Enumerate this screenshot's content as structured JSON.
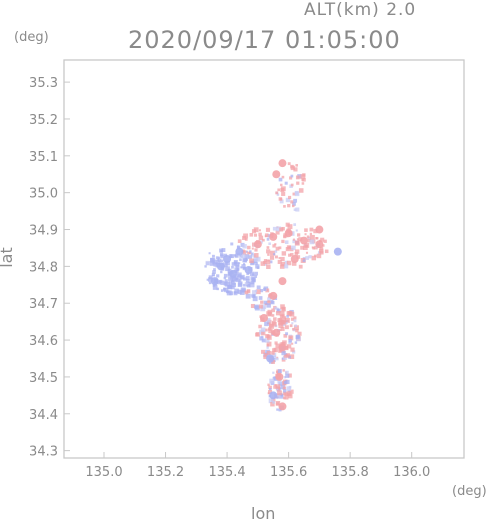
{
  "header": {
    "altitude_text": "ALT(km) 2.0",
    "timestamp": "2020/09/17 01:05:00",
    "y_unit": "(deg)",
    "x_unit": "(deg)"
  },
  "colors": {
    "frame": "#c8c8c8",
    "text": "#8a8a8a",
    "positive": "#f3a3a8",
    "negative": "#a9b2f2",
    "near_zero": "#c8ccf4"
  },
  "chart_data": {
    "type": "scatter",
    "title": "2020/09/17 01:05:00",
    "subtitle": "ALT(km) 2.0",
    "xlabel": "lon",
    "ylabel": "lat",
    "x_unit": "(deg)",
    "y_unit": "(deg)",
    "xlim": [
      134.87,
      136.17
    ],
    "ylim": [
      34.28,
      35.36
    ],
    "x_ticks": [
      "135.0",
      "135.2",
      "135.4",
      "135.6",
      "135.8",
      "136.0"
    ],
    "y_ticks": [
      "34.3",
      "34.4",
      "34.5",
      "34.6",
      "34.7",
      "34.8",
      "34.9",
      "35.0",
      "35.1",
      "35.2",
      "35.3"
    ],
    "grid": false,
    "series": [
      {
        "values_note": "",
        "points": [
          {
            "x": 135.38,
            "y": 34.8,
            "v": -0.8
          },
          {
            "x": 135.4,
            "y": 34.82,
            "v": -0.9
          },
          {
            "x": 135.42,
            "y": 34.78,
            "v": -0.7
          },
          {
            "x": 135.36,
            "y": 34.76,
            "v": -0.6
          },
          {
            "x": 135.44,
            "y": 34.84,
            "v": -0.5
          },
          {
            "x": 135.47,
            "y": 34.79,
            "v": -0.4
          },
          {
            "x": 135.5,
            "y": 34.86,
            "v": 0.5
          },
          {
            "x": 135.55,
            "y": 34.88,
            "v": 0.6
          },
          {
            "x": 135.6,
            "y": 34.89,
            "v": 0.7
          },
          {
            "x": 135.65,
            "y": 34.87,
            "v": 0.5
          },
          {
            "x": 135.7,
            "y": 34.9,
            "v": 0.6
          },
          {
            "x": 135.62,
            "y": 34.82,
            "v": 0.4
          },
          {
            "x": 135.58,
            "y": 34.76,
            "v": 0.5
          },
          {
            "x": 135.55,
            "y": 34.72,
            "v": 0.6
          },
          {
            "x": 135.52,
            "y": 34.66,
            "v": 0.7
          },
          {
            "x": 135.56,
            "y": 34.62,
            "v": 0.8
          },
          {
            "x": 135.58,
            "y": 34.58,
            "v": 0.6
          },
          {
            "x": 135.54,
            "y": 34.55,
            "v": -0.3
          },
          {
            "x": 135.57,
            "y": 34.5,
            "v": 0.5
          },
          {
            "x": 135.55,
            "y": 34.45,
            "v": -0.4
          },
          {
            "x": 135.58,
            "y": 34.42,
            "v": 0.3
          },
          {
            "x": 135.56,
            "y": 35.05,
            "v": 0.6
          },
          {
            "x": 135.58,
            "y": 35.08,
            "v": 0.4
          },
          {
            "x": 135.7,
            "y": 34.86,
            "v": 0.3
          },
          {
            "x": 135.76,
            "y": 34.84,
            "v": -0.3
          }
        ]
      }
    ]
  }
}
